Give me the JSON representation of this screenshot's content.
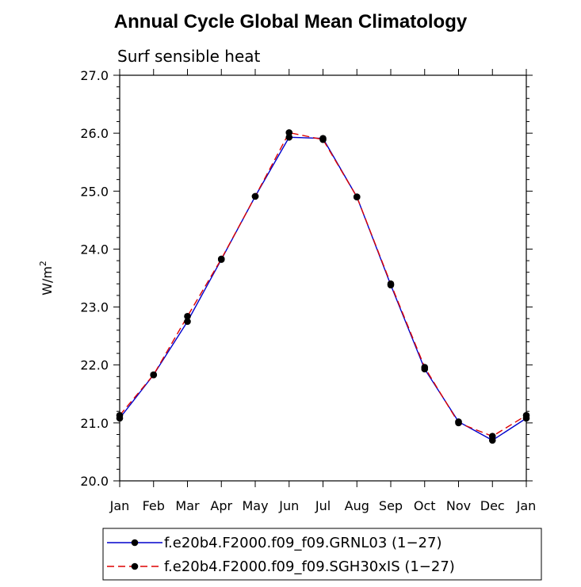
{
  "chart_data": {
    "type": "line",
    "title": "Annual Cycle Global Mean Climatology",
    "subtitle": "Surf sensible heat",
    "ylabel_base": "W/m",
    "ylabel_exp": "2",
    "xlabel": "",
    "ylim": [
      20.0,
      27.0
    ],
    "yticks": [
      "20.0",
      "21.0",
      "22.0",
      "23.0",
      "24.0",
      "25.0",
      "26.0",
      "27.0"
    ],
    "categories": [
      "Jan",
      "Feb",
      "Mar",
      "Apr",
      "May",
      "Jun",
      "Jul",
      "Aug",
      "Sep",
      "Oct",
      "Nov",
      "Dec",
      "Jan"
    ],
    "series": [
      {
        "name": "f.e20b4.F2000.f09_f09.GRNL03 (1−27)",
        "color": "#0000cc",
        "dash": "solid",
        "values": [
          21.08,
          21.83,
          22.75,
          23.82,
          24.91,
          25.93,
          25.91,
          24.9,
          23.38,
          21.93,
          21.02,
          20.7,
          21.08
        ]
      },
      {
        "name": "f.e20b4.F2000.f09_f09.SGH30xIS (1−27)",
        "color": "#dd0000",
        "dash": "dashed",
        "values": [
          21.13,
          21.83,
          22.84,
          23.83,
          24.91,
          26.01,
          25.89,
          24.9,
          23.4,
          21.96,
          21.0,
          20.77,
          21.13
        ]
      }
    ]
  }
}
